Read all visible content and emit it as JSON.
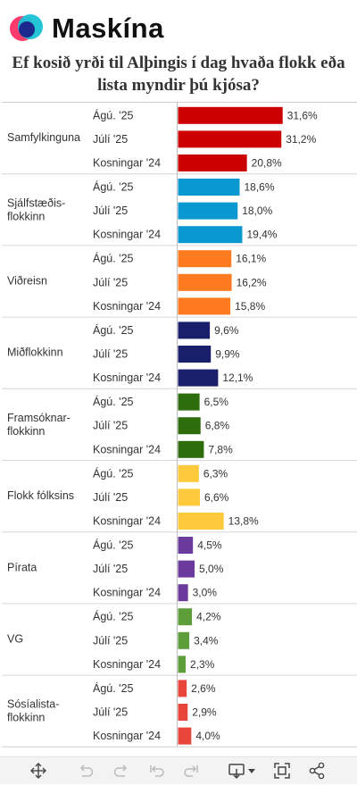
{
  "brand": {
    "name": "Maskína"
  },
  "chart_data": {
    "type": "bar",
    "orientation": "horizontal",
    "title": "Ef kosið yrði til Alþingis í dag hvaða flokk eða lista myndir þú kjósa?",
    "xlim": [
      0,
      33
    ],
    "value_suffix": "%",
    "groups": [
      {
        "label": "Samfylkinguna",
        "color": "#cc0000",
        "bars": [
          {
            "label": "Ágú. '25",
            "value": 31.6,
            "text": "31,6%"
          },
          {
            "label": "Júlí '25",
            "value": 31.2,
            "text": "31,2%"
          },
          {
            "label": "Kosningar '24",
            "value": 20.8,
            "text": "20,8%"
          }
        ]
      },
      {
        "label": "Sjálfstæðis-\nflokkinn",
        "color": "#0999d0",
        "bars": [
          {
            "label": "Ágú. '25",
            "value": 18.6,
            "text": "18,6%"
          },
          {
            "label": "Júlí '25",
            "value": 18.0,
            "text": "18,0%"
          },
          {
            "label": "Kosningar '24",
            "value": 19.4,
            "text": "19,4%"
          }
        ]
      },
      {
        "label": "Viðreisn",
        "color": "#ff7b20",
        "bars": [
          {
            "label": "Ágú. '25",
            "value": 16.1,
            "text": "16,1%"
          },
          {
            "label": "Júlí '25",
            "value": 16.2,
            "text": "16,2%"
          },
          {
            "label": "Kosningar '24",
            "value": 15.8,
            "text": "15,8%"
          }
        ]
      },
      {
        "label": "Miðflokkinn",
        "color": "#1a1f6b",
        "bars": [
          {
            "label": "Ágú. '25",
            "value": 9.6,
            "text": "9,6%"
          },
          {
            "label": "Júlí '25",
            "value": 9.9,
            "text": "9,9%"
          },
          {
            "label": "Kosningar '24",
            "value": 12.1,
            "text": "12,1%"
          }
        ]
      },
      {
        "label": "Framsóknar-\nflokkinn",
        "color": "#2e6d0b",
        "bars": [
          {
            "label": "Ágú. '25",
            "value": 6.5,
            "text": "6,5%"
          },
          {
            "label": "Júlí '25",
            "value": 6.8,
            "text": "6,8%"
          },
          {
            "label": "Kosningar '24",
            "value": 7.8,
            "text": "7,8%"
          }
        ]
      },
      {
        "label": "Flokk fólksins",
        "color": "#ffc93c",
        "bars": [
          {
            "label": "Ágú. '25",
            "value": 6.3,
            "text": "6,3%"
          },
          {
            "label": "Júlí '25",
            "value": 6.6,
            "text": "6,6%"
          },
          {
            "label": "Kosningar '24",
            "value": 13.8,
            "text": "13,8%"
          }
        ]
      },
      {
        "label": "Pírata",
        "color": "#6a3a9c",
        "bars": [
          {
            "label": "Ágú. '25",
            "value": 4.5,
            "text": "4,5%"
          },
          {
            "label": "Júlí '25",
            "value": 5.0,
            "text": "5,0%"
          },
          {
            "label": "Kosningar '24",
            "value": 3.0,
            "text": "3,0%"
          }
        ]
      },
      {
        "label": "VG",
        "color": "#5e9e3a",
        "bars": [
          {
            "label": "Ágú. '25",
            "value": 4.2,
            "text": "4,2%"
          },
          {
            "label": "Júlí '25",
            "value": 3.4,
            "text": "3,4%"
          },
          {
            "label": "Kosningar '24",
            "value": 2.3,
            "text": "2,3%"
          }
        ]
      },
      {
        "label": "Sósíalista-\nflokkinn",
        "color": "#e8463a",
        "bars": [
          {
            "label": "Ágú. '25",
            "value": 2.6,
            "text": "2,6%"
          },
          {
            "label": "Júlí '25",
            "value": 2.9,
            "text": "2,9%"
          },
          {
            "label": "Kosningar '24",
            "value": 4.0,
            "text": "4,0%"
          }
        ]
      }
    ]
  },
  "toolbar": {
    "icons": [
      "move-icon",
      "undo-icon",
      "redo-icon",
      "revert-icon",
      "forward-icon",
      "download-icon",
      "dropdown-caret-icon",
      "fullscreen-icon",
      "share-icon"
    ]
  }
}
